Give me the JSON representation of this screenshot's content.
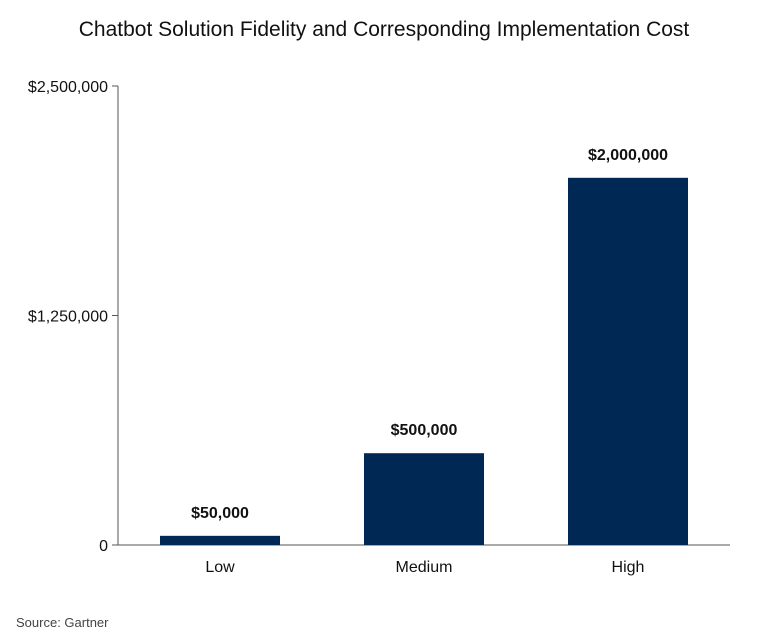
{
  "chart_data": {
    "type": "bar",
    "title": "Chatbot Solution Fidelity and Corresponding Implementation Cost",
    "xlabel": "",
    "ylabel": "",
    "categories": [
      "Low",
      "Medium",
      "High"
    ],
    "values": [
      50000,
      500000,
      2000000
    ],
    "value_labels": [
      "$50,000",
      "$500,000",
      "$2,000,000"
    ],
    "yticks": [
      0,
      1250000,
      2500000
    ],
    "ytick_labels": [
      "0",
      "$1,250,000",
      "$2,500,000"
    ],
    "ylim": [
      0,
      2500000
    ],
    "grid": false,
    "legend": "none",
    "bar_color": "#002855"
  },
  "footer": {
    "source": "Source: Gartner"
  }
}
